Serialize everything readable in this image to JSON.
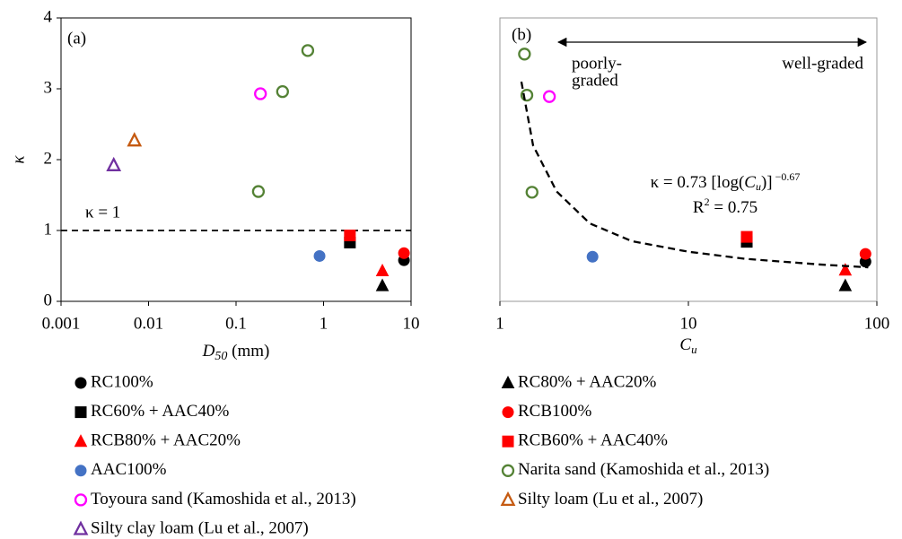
{
  "chart_data": [
    {
      "type": "scatter",
      "label": "(a)",
      "xscale": "log",
      "xlim": [
        0.001,
        10
      ],
      "xticks": [
        0.001,
        0.01,
        0.1,
        1,
        10
      ],
      "ylim": [
        0,
        4
      ],
      "yticks": [
        0,
        1,
        2,
        3,
        4
      ],
      "ylabel": "κ",
      "xlabel": [
        "D",
        "50",
        " (mm)"
      ],
      "hline": {
        "value": 1,
        "label": "κ = 1"
      },
      "series": [
        {
          "name": "RC100%",
          "color": "#000000",
          "marker": "circle",
          "filled": true,
          "x": [
            8.3
          ],
          "values": [
            0.58
          ]
        },
        {
          "name": "RC80% + AAC20%",
          "color": "#000000",
          "marker": "triangle",
          "filled": true,
          "x": [
            4.7
          ],
          "values": [
            0.22
          ]
        },
        {
          "name": "RC60% + AAC40%",
          "color": "#000000",
          "marker": "square",
          "filled": true,
          "x": [
            2.0
          ],
          "values": [
            0.83
          ]
        },
        {
          "name": "RCB100%",
          "color": "#ff0000",
          "marker": "circle",
          "filled": true,
          "x": [
            8.3
          ],
          "values": [
            0.68
          ]
        },
        {
          "name": "RCB80% + AAC20%",
          "color": "#ff0000",
          "marker": "triangle",
          "filled": true,
          "x": [
            4.7
          ],
          "values": [
            0.43
          ]
        },
        {
          "name": "RCB60% + AAC40%",
          "color": "#ff0000",
          "marker": "square",
          "filled": true,
          "x": [
            2.0
          ],
          "values": [
            0.93
          ]
        },
        {
          "name": "AAC100%",
          "color": "#4472c4",
          "marker": "circle",
          "filled": true,
          "x": [
            0.9
          ],
          "values": [
            0.64
          ]
        },
        {
          "name": "Narita sand (Kamoshida et al., 2013)",
          "color": "#548235",
          "marker": "circle",
          "filled": false,
          "x": [
            0.18,
            0.34,
            0.66
          ],
          "values": [
            1.55,
            2.96,
            3.54
          ]
        },
        {
          "name": "Toyoura sand (Kamoshida et al., 2013)",
          "color": "#ff00ff",
          "marker": "circle",
          "filled": false,
          "x": [
            0.19
          ],
          "values": [
            2.93
          ]
        },
        {
          "name": "Silty loam (Lu et al., 2007)",
          "color": "#c55a11",
          "marker": "triangle",
          "filled": false,
          "x": [
            0.0069
          ],
          "values": [
            2.27
          ]
        },
        {
          "name": "Silty clay loam (Lu et al., 2007)",
          "color": "#7030a0",
          "marker": "triangle",
          "filled": false,
          "x": [
            0.004
          ],
          "values": [
            1.92
          ]
        }
      ]
    },
    {
      "type": "scatter",
      "label": "(b)",
      "xscale": "log",
      "xlim": [
        1,
        100
      ],
      "xticks": [
        1,
        10,
        100
      ],
      "ylim": [
        0,
        4
      ],
      "xlabel": [
        "C",
        "u"
      ],
      "annotations": {
        "left": [
          "poorly-",
          "graded"
        ],
        "right": "well-graded",
        "equation": [
          "κ = 0.73 [log(",
          "C",
          "u",
          ")]",
          " −0.67"
        ],
        "r2": [
          "R",
          "2",
          " = 0.75"
        ]
      },
      "series": [
        {
          "name": "RC100%",
          "color": "#000000",
          "marker": "circle",
          "filled": true,
          "x": [
            87
          ],
          "values": [
            0.56
          ]
        },
        {
          "name": "RC80% + AAC20%",
          "color": "#000000",
          "marker": "triangle",
          "filled": true,
          "x": [
            68
          ],
          "values": [
            0.22
          ]
        },
        {
          "name": "RC60% + AAC40%",
          "color": "#000000",
          "marker": "square",
          "filled": true,
          "x": [
            20.4
          ],
          "values": [
            0.84
          ]
        },
        {
          "name": "RCB100%",
          "color": "#ff0000",
          "marker": "circle",
          "filled": true,
          "x": [
            87
          ],
          "values": [
            0.67
          ]
        },
        {
          "name": "RCB80% + AAC20%",
          "color": "#ff0000",
          "marker": "triangle",
          "filled": true,
          "x": [
            68
          ],
          "values": [
            0.44
          ]
        },
        {
          "name": "RCB60% + AAC40%",
          "color": "#ff0000",
          "marker": "square",
          "filled": true,
          "x": [
            20.4
          ],
          "values": [
            0.91
          ]
        },
        {
          "name": "AAC100%",
          "color": "#4472c4",
          "marker": "circle",
          "filled": true,
          "x": [
            3.1
          ],
          "values": [
            0.63
          ]
        },
        {
          "name": "Narita sand (Kamoshida et al., 2013)",
          "color": "#548235",
          "marker": "circle",
          "filled": false,
          "x": [
            1.35,
            1.39,
            1.48
          ],
          "values": [
            3.49,
            2.91,
            1.54
          ]
        },
        {
          "name": "Toyoura sand (Kamoshida et al., 2013)",
          "color": "#ff00ff",
          "marker": "circle",
          "filled": false,
          "x": [
            1.83
          ],
          "values": [
            2.89
          ]
        },
        {
          "name": "Fit",
          "color": "#000000",
          "marker": "line",
          "x": [
            1.3,
            1.5,
            2,
            3,
            5,
            10,
            20,
            50,
            90
          ],
          "values": [
            3.1,
            2.2,
            1.55,
            1.1,
            0.85,
            0.7,
            0.6,
            0.52,
            0.48
          ]
        }
      ]
    }
  ]
}
